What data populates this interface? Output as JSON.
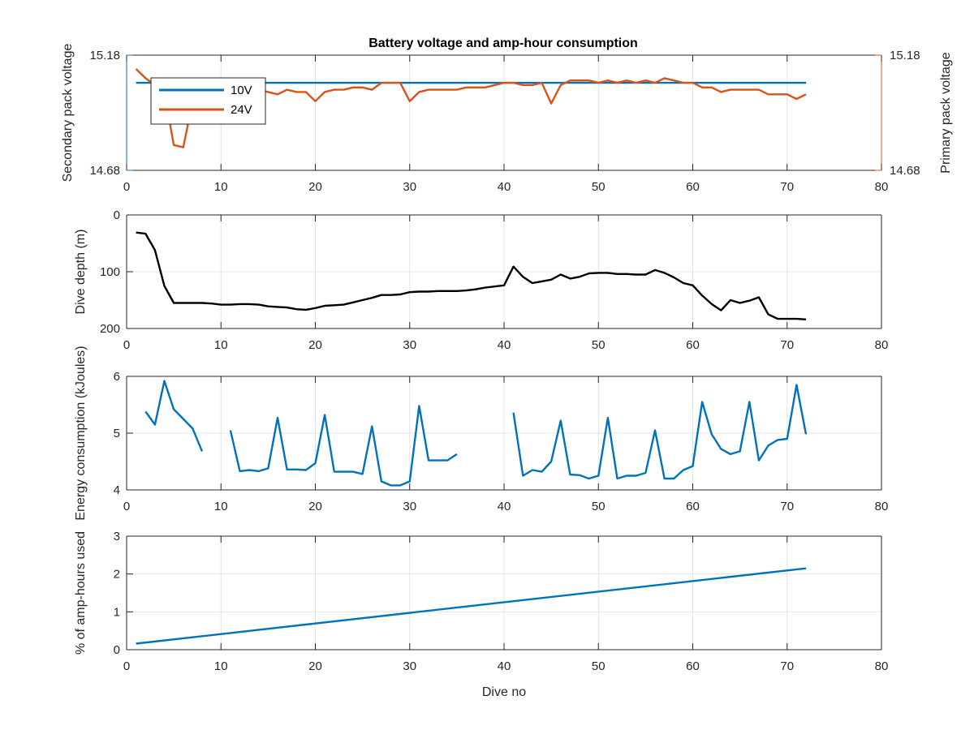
{
  "chart_data": [
    {
      "type": "line",
      "title": "Battery voltage and amp-hour consumption",
      "ylabel_left": "Secondary pack voltage",
      "ylabel_right": "Primary pack voltage",
      "xlim": [
        0,
        80
      ],
      "ylim_left": [
        14.68,
        15.18
      ],
      "ylim_right": [
        14.68,
        15.18
      ],
      "x_ticks": [
        "0",
        "10",
        "20",
        "30",
        "40",
        "50",
        "60",
        "70",
        "80"
      ],
      "y_ticks_left": [
        "14.68",
        "15.18"
      ],
      "y_ticks_right": [
        "14.68",
        "15.18"
      ],
      "grid": true,
      "legend": "top-left",
      "colors": {
        "left_axis": "#0072BD",
        "right_axis": "#D95319"
      },
      "series": [
        {
          "name": "10V",
          "axis": "left",
          "color": "#0072BD",
          "x": [
            1,
            72
          ],
          "y": [
            15.06,
            15.06
          ]
        },
        {
          "name": "24V",
          "axis": "right",
          "color": "#D95319",
          "x": [
            1,
            2,
            3,
            4,
            5,
            6,
            7,
            8,
            9,
            10,
            11,
            12,
            13,
            14,
            15,
            16,
            17,
            18,
            19,
            20,
            21,
            22,
            23,
            24,
            25,
            26,
            27,
            28,
            29,
            30,
            31,
            32,
            33,
            34,
            35,
            36,
            37,
            38,
            39,
            40,
            41,
            42,
            43,
            44,
            45,
            46,
            47,
            48,
            49,
            50,
            51,
            52,
            53,
            54,
            55,
            56,
            57,
            58,
            59,
            60,
            61,
            62,
            63,
            64,
            65,
            66,
            67,
            68,
            69,
            70,
            71,
            72
          ],
          "y": [
            15.12,
            15.08,
            15.05,
            15.02,
            14.79,
            14.78,
            14.98,
            15.02,
            15.02,
            15.02,
            15.02,
            15.03,
            15.02,
            15.03,
            15.02,
            15.01,
            15.03,
            15.02,
            15.02,
            14.98,
            15.02,
            15.03,
            15.03,
            15.04,
            15.04,
            15.03,
            15.06,
            15.06,
            15.06,
            14.98,
            15.02,
            15.03,
            15.03,
            15.03,
            15.03,
            15.04,
            15.04,
            15.04,
            15.05,
            15.06,
            15.06,
            15.05,
            15.05,
            15.06,
            14.97,
            15.05,
            15.07,
            15.07,
            15.07,
            15.06,
            15.07,
            15.06,
            15.07,
            15.06,
            15.07,
            15.06,
            15.08,
            15.07,
            15.06,
            15.06,
            15.04,
            15.04,
            15.02,
            15.03,
            15.03,
            15.03,
            15.03,
            15.01,
            15.01,
            15.01,
            14.99,
            15.01
          ]
        }
      ]
    },
    {
      "type": "line",
      "ylabel": "Dive depth (m)",
      "xlim": [
        0,
        80
      ],
      "ylim": [
        0,
        200
      ],
      "y_reversed": true,
      "x_ticks": [
        "0",
        "10",
        "20",
        "30",
        "40",
        "50",
        "60",
        "70",
        "80"
      ],
      "y_ticks": [
        "0",
        "100",
        "200"
      ],
      "grid": true,
      "colors": {
        "line": "#000000"
      },
      "series": [
        {
          "color": "#000000",
          "x": [
            1,
            2,
            3,
            4,
            5,
            6,
            7,
            8,
            9,
            10,
            11,
            12,
            13,
            14,
            15,
            16,
            17,
            18,
            19,
            20,
            21,
            22,
            23,
            24,
            25,
            26,
            27,
            28,
            29,
            30,
            31,
            32,
            33,
            34,
            35,
            36,
            37,
            38,
            39,
            40,
            41,
            42,
            43,
            44,
            45,
            46,
            47,
            48,
            49,
            50,
            51,
            52,
            53,
            54,
            55,
            56,
            57,
            58,
            59,
            60,
            61,
            62,
            63,
            64,
            65,
            66,
            67,
            68,
            69,
            70,
            71,
            72
          ],
          "y": [
            31,
            33,
            62,
            125,
            155,
            155,
            155,
            155,
            156,
            158,
            158,
            157,
            157,
            158,
            161,
            162,
            163,
            166,
            167,
            164,
            160,
            159,
            158,
            154,
            150,
            146,
            141,
            141,
            140,
            136,
            135,
            135,
            134,
            134,
            134,
            133,
            131,
            128,
            126,
            124,
            91,
            109,
            120,
            117,
            114,
            105,
            112,
            109,
            103,
            102,
            102,
            104,
            104,
            105,
            105,
            97,
            102,
            110,
            120,
            124,
            142,
            157,
            168,
            150,
            155,
            151,
            145,
            175,
            183,
            183,
            183,
            184
          ]
        }
      ]
    },
    {
      "type": "line",
      "ylabel": "Energy consumption (kJoules)",
      "xlim": [
        0,
        80
      ],
      "ylim": [
        4,
        6
      ],
      "x_ticks": [
        "0",
        "10",
        "20",
        "30",
        "40",
        "50",
        "60",
        "70",
        "80"
      ],
      "y_ticks": [
        "4",
        "5",
        "6"
      ],
      "grid": true,
      "colors": {
        "line": "#0072BD"
      },
      "series": [
        {
          "color": "#0072BD",
          "x": [
            2,
            3,
            4,
            5,
            6,
            7,
            8,
            null,
            11,
            12,
            13,
            14,
            15,
            16,
            17,
            18,
            19,
            20,
            21,
            22,
            23,
            24,
            25,
            26,
            27,
            28,
            29,
            30,
            31,
            32,
            33,
            34,
            35,
            null,
            41,
            42,
            43,
            44,
            45,
            46,
            47,
            48,
            49,
            50,
            51,
            52,
            53,
            54,
            55,
            56,
            57,
            58,
            59,
            60,
            61,
            62,
            63,
            64,
            65,
            66,
            67,
            68,
            69,
            70,
            71,
            72
          ],
          "y": [
            5.38,
            5.15,
            5.92,
            5.42,
            5.25,
            5.08,
            4.68,
            null,
            5.05,
            4.33,
            4.35,
            4.33,
            4.38,
            5.27,
            4.36,
            4.36,
            4.35,
            4.47,
            5.32,
            4.32,
            4.32,
            4.32,
            4.28,
            5.12,
            4.15,
            4.08,
            4.08,
            4.15,
            5.48,
            4.52,
            4.52,
            4.52,
            4.63,
            null,
            5.36,
            4.25,
            4.35,
            4.32,
            4.5,
            5.22,
            4.27,
            4.26,
            4.2,
            4.25,
            5.27,
            4.2,
            4.25,
            4.25,
            4.3,
            5.05,
            4.2,
            4.2,
            4.35,
            4.42,
            5.55,
            4.98,
            4.72,
            4.63,
            4.68,
            5.55,
            4.52,
            4.78,
            4.88,
            4.9,
            5.85,
            4.98
          ]
        }
      ]
    },
    {
      "type": "line",
      "ylabel": "% of amp-hours used",
      "xlabel": "Dive no",
      "xlim": [
        0,
        80
      ],
      "ylim": [
        0,
        3
      ],
      "x_ticks": [
        "0",
        "10",
        "20",
        "30",
        "40",
        "50",
        "60",
        "70",
        "80"
      ],
      "y_ticks": [
        "0",
        "1",
        "2",
        "3"
      ],
      "grid": true,
      "colors": {
        "line": "#0072BD"
      },
      "series": [
        {
          "color": "#0072BD",
          "x": [
            1,
            72
          ],
          "y": [
            0.16,
            2.15
          ]
        }
      ]
    }
  ]
}
